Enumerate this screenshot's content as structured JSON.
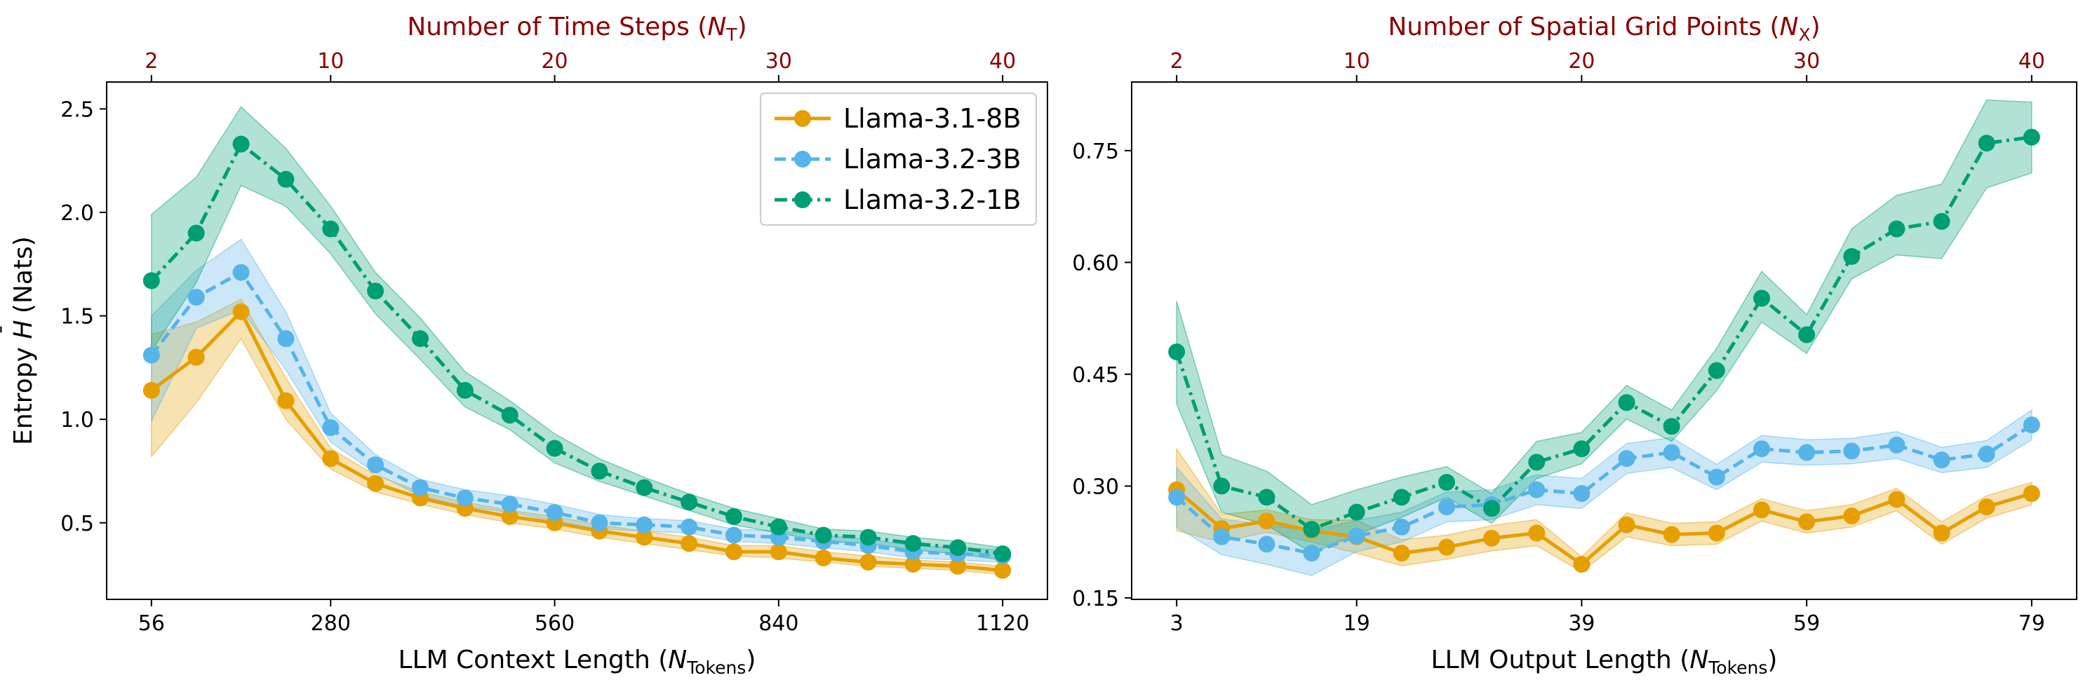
{
  "chart_data": [
    {
      "type": "line",
      "x": [
        56,
        112,
        168,
        224,
        280,
        336,
        392,
        448,
        504,
        560,
        616,
        672,
        728,
        784,
        840,
        896,
        952,
        1008,
        1064,
        1120
      ],
      "xlabel_main": "LLM Context Length (",
      "xlabel_var": "N",
      "xlabel_sub": "Tokens",
      "xlabel_close": ")",
      "ylabel_prefix": "Entropy ",
      "ylabel_var": "H",
      "ylabel_bar": "¯",
      "ylabel_suffix": " (Nats)",
      "xlim": [
        0,
        1176
      ],
      "ylim": [
        0.13,
        2.63
      ],
      "xticks": [
        56,
        280,
        560,
        840,
        1120
      ],
      "xtick_labels": [
        "56",
        "280",
        "560",
        "840",
        "1120"
      ],
      "yticks": [
        0.5,
        1.0,
        1.5,
        2.0,
        2.5
      ],
      "ytick_labels": [
        "0.5",
        "1.0",
        "1.5",
        "2.0",
        "2.5"
      ],
      "top_axis": {
        "label_main": "Number of Time Steps (",
        "label_var": "N",
        "label_sub": "T",
        "label_close": ")",
        "ticks": [
          56,
          280,
          560,
          840,
          1120
        ],
        "tick_labels": [
          "2",
          "10",
          "20",
          "30",
          "40"
        ]
      },
      "legend": {
        "position": "top-right",
        "entries": [
          "Llama-3.1-8B",
          "Llama-3.2-3B",
          "Llama-3.2-1B"
        ]
      },
      "series": [
        {
          "name": "Llama-3.1-8B",
          "color": "#e69f00",
          "dash": "solid",
          "values": [
            1.14,
            1.3,
            1.52,
            1.09,
            0.81,
            0.69,
            0.62,
            0.57,
            0.53,
            0.5,
            0.46,
            0.43,
            0.4,
            0.36,
            0.36,
            0.33,
            0.31,
            0.3,
            0.29,
            0.27
          ],
          "lower": [
            0.82,
            1.08,
            1.39,
            1.0,
            0.76,
            0.65,
            0.59,
            0.54,
            0.5,
            0.47,
            0.43,
            0.4,
            0.37,
            0.34,
            0.33,
            0.31,
            0.29,
            0.28,
            0.27,
            0.25
          ],
          "upper": [
            1.41,
            1.47,
            1.58,
            1.2,
            0.86,
            0.73,
            0.65,
            0.6,
            0.56,
            0.53,
            0.49,
            0.46,
            0.43,
            0.39,
            0.39,
            0.36,
            0.34,
            0.32,
            0.31,
            0.29
          ]
        },
        {
          "name": "Llama-3.2-3B",
          "color": "#56b4e9",
          "dash": "dashed",
          "values": [
            1.31,
            1.59,
            1.71,
            1.39,
            0.96,
            0.78,
            0.67,
            0.62,
            0.59,
            0.55,
            0.5,
            0.49,
            0.48,
            0.44,
            0.43,
            0.41,
            0.39,
            0.36,
            0.35,
            0.34
          ],
          "lower": [
            0.99,
            1.44,
            1.53,
            1.24,
            0.89,
            0.74,
            0.63,
            0.58,
            0.55,
            0.51,
            0.47,
            0.46,
            0.45,
            0.41,
            0.4,
            0.38,
            0.36,
            0.33,
            0.32,
            0.31
          ],
          "upper": [
            1.5,
            1.72,
            1.87,
            1.52,
            1.03,
            0.83,
            0.71,
            0.66,
            0.63,
            0.59,
            0.54,
            0.52,
            0.51,
            0.47,
            0.46,
            0.44,
            0.42,
            0.39,
            0.38,
            0.37
          ]
        },
        {
          "name": "Llama-3.2-1B",
          "color": "#009e73",
          "dash": "dashdot",
          "values": [
            1.67,
            1.9,
            2.33,
            2.16,
            1.92,
            1.62,
            1.39,
            1.14,
            1.02,
            0.86,
            0.75,
            0.67,
            0.6,
            0.53,
            0.48,
            0.44,
            0.43,
            0.4,
            0.38,
            0.35
          ],
          "lower": [
            1.33,
            1.66,
            2.13,
            2.03,
            1.8,
            1.51,
            1.29,
            1.06,
            0.95,
            0.79,
            0.7,
            0.63,
            0.56,
            0.49,
            0.45,
            0.41,
            0.4,
            0.37,
            0.35,
            0.32
          ],
          "upper": [
            1.99,
            2.17,
            2.51,
            2.31,
            2.03,
            1.71,
            1.49,
            1.23,
            1.09,
            0.93,
            0.81,
            0.72,
            0.64,
            0.57,
            0.52,
            0.47,
            0.46,
            0.43,
            0.41,
            0.38
          ]
        }
      ]
    },
    {
      "type": "line",
      "x": [
        3,
        7,
        11,
        15,
        19,
        23,
        27,
        31,
        35,
        39,
        43,
        47,
        51,
        55,
        59,
        63,
        67,
        71,
        75,
        79
      ],
      "xlabel_main": "LLM Output Length (",
      "xlabel_var": "N",
      "xlabel_sub": "Tokens",
      "xlabel_close": ")",
      "xlim": [
        -1,
        83
      ],
      "ylim": [
        0.148,
        0.842
      ],
      "xticks": [
        3,
        19,
        39,
        59,
        79
      ],
      "xtick_labels": [
        "3",
        "19",
        "39",
        "59",
        "79"
      ],
      "yticks": [
        0.15,
        0.3,
        0.45,
        0.6,
        0.75
      ],
      "ytick_labels": [
        "0.15",
        "0.30",
        "0.45",
        "0.60",
        "0.75"
      ],
      "top_axis": {
        "label_main": "Number of Spatial Grid Points (",
        "label_var": "N",
        "label_sub": "X",
        "label_close": ")",
        "ticks": [
          3,
          19,
          39,
          59,
          79
        ],
        "tick_labels": [
          "2",
          "10",
          "20",
          "30",
          "40"
        ]
      },
      "series": [
        {
          "name": "Llama-3.1-8B",
          "color": "#e69f00",
          "dash": "solid",
          "values": [
            0.295,
            0.243,
            0.253,
            0.24,
            0.232,
            0.21,
            0.218,
            0.23,
            0.237,
            0.195,
            0.248,
            0.235,
            0.237,
            0.268,
            0.252,
            0.26,
            0.282,
            0.237,
            0.272,
            0.29
          ],
          "lower": [
            0.24,
            0.225,
            0.238,
            0.225,
            0.21,
            0.193,
            0.202,
            0.213,
            0.22,
            0.185,
            0.232,
            0.22,
            0.222,
            0.253,
            0.237,
            0.245,
            0.267,
            0.222,
            0.257,
            0.275
          ],
          "upper": [
            0.35,
            0.262,
            0.268,
            0.255,
            0.254,
            0.228,
            0.234,
            0.247,
            0.255,
            0.205,
            0.264,
            0.25,
            0.252,
            0.283,
            0.267,
            0.275,
            0.297,
            0.252,
            0.287,
            0.305
          ]
        },
        {
          "name": "Llama-3.2-3B",
          "color": "#56b4e9",
          "dash": "dashed",
          "values": [
            0.285,
            0.232,
            0.222,
            0.21,
            0.233,
            0.245,
            0.272,
            0.275,
            0.295,
            0.29,
            0.337,
            0.345,
            0.312,
            0.35,
            0.345,
            0.347,
            0.355,
            0.335,
            0.343,
            0.382
          ],
          "lower": [
            0.245,
            0.208,
            0.195,
            0.18,
            0.212,
            0.225,
            0.252,
            0.255,
            0.275,
            0.27,
            0.317,
            0.325,
            0.295,
            0.332,
            0.328,
            0.33,
            0.337,
            0.318,
            0.325,
            0.362
          ],
          "upper": [
            0.325,
            0.256,
            0.248,
            0.24,
            0.254,
            0.265,
            0.292,
            0.295,
            0.315,
            0.31,
            0.357,
            0.365,
            0.329,
            0.368,
            0.362,
            0.364,
            0.373,
            0.352,
            0.361,
            0.402
          ]
        },
        {
          "name": "Llama-3.2-1B",
          "color": "#009e73",
          "dash": "dashdot",
          "values": [
            0.48,
            0.3,
            0.285,
            0.242,
            0.265,
            0.285,
            0.305,
            0.27,
            0.332,
            0.35,
            0.412,
            0.38,
            0.455,
            0.552,
            0.503,
            0.608,
            0.645,
            0.655,
            0.76,
            0.768
          ],
          "lower": [
            0.41,
            0.265,
            0.248,
            0.21,
            0.235,
            0.258,
            0.285,
            0.25,
            0.31,
            0.33,
            0.39,
            0.36,
            0.428,
            0.52,
            0.478,
            0.578,
            0.61,
            0.605,
            0.7,
            0.72
          ],
          "upper": [
            0.548,
            0.342,
            0.32,
            0.275,
            0.295,
            0.312,
            0.326,
            0.29,
            0.36,
            0.372,
            0.435,
            0.402,
            0.485,
            0.588,
            0.53,
            0.645,
            0.69,
            0.705,
            0.818,
            0.815
          ]
        }
      ]
    }
  ]
}
